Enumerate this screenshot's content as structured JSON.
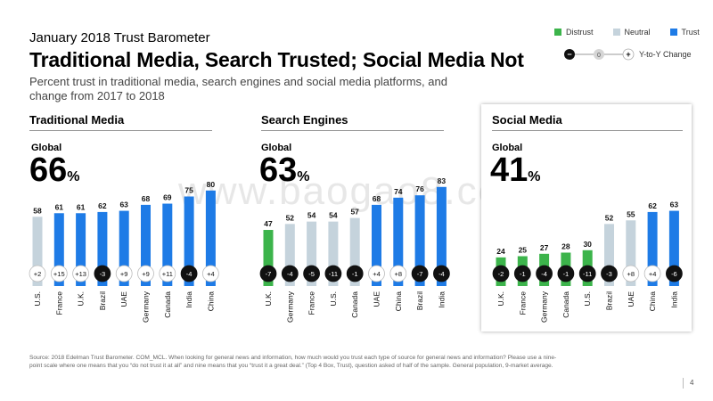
{
  "header": {
    "kicker": "January 2018 Trust Barometer",
    "title": "Traditional Media, Search Trusted; Social Media Not",
    "subtitle": "Percent trust in traditional media, search engines and social media platforms, and change from 2017 to 2018"
  },
  "legend": {
    "distrust": {
      "label": "Distrust",
      "color": "#3cb44b"
    },
    "neutral": {
      "label": "Neutral",
      "color": "#c5d3dc"
    },
    "trust": {
      "label": "Trust",
      "color": "#1e7be6"
    },
    "yoy": {
      "minus": "−",
      "zero": "0",
      "plus": "+",
      "label": "Y-to-Y Change"
    }
  },
  "footer": {
    "source": "Source: 2018 Edelman Trust Barometer. COM_MCL. When looking for general news and information, how much would you trust each type of source for general news and information? Please use a nine-point scale where one means that you “do not trust it at all” and nine means that you “trust it a great deal.” (Top 4 Box, Trust), question asked of half of the sample. General population, 9-market average.",
    "page": "4"
  },
  "watermark": "www.baogao8.com",
  "chart_data": [
    {
      "type": "bar",
      "section": "Traditional Media",
      "global_label": "Global",
      "global_value": "66",
      "unit": "%",
      "categories": [
        "U.S.",
        "France",
        "U.K.",
        "Brazil",
        "UAE",
        "Germany",
        "Canada",
        "India",
        "China"
      ],
      "values": [
        58,
        61,
        61,
        62,
        63,
        68,
        69,
        75,
        80
      ],
      "trust_level": [
        "neutral",
        "trust",
        "trust",
        "trust",
        "trust",
        "trust",
        "trust",
        "trust",
        "trust"
      ],
      "changes": [
        "+2",
        "+15",
        "+13",
        "-3",
        "+9",
        "+9",
        "+11",
        "-4",
        "+4"
      ],
      "change_dir": [
        "up",
        "up",
        "up",
        "down",
        "up",
        "up",
        "up",
        "down",
        "up"
      ]
    },
    {
      "type": "bar",
      "section": "Search Engines",
      "global_label": "Global",
      "global_value": "63",
      "unit": "%",
      "categories": [
        "U.K.",
        "Germany",
        "France",
        "U.S.",
        "Canada",
        "UAE",
        "China",
        "Brazil",
        "India"
      ],
      "values": [
        47,
        52,
        54,
        54,
        57,
        68,
        74,
        76,
        83
      ],
      "trust_level": [
        "distrust",
        "neutral",
        "neutral",
        "neutral",
        "neutral",
        "trust",
        "trust",
        "trust",
        "trust"
      ],
      "changes": [
        "-7",
        "-4",
        "-5",
        "-11",
        "-1",
        "+4",
        "+8",
        "-7",
        "-4"
      ],
      "change_dir": [
        "down",
        "down",
        "down",
        "down",
        "down",
        "up",
        "up",
        "down",
        "down"
      ]
    },
    {
      "type": "bar",
      "section": "Social Media",
      "global_label": "Global",
      "global_value": "41",
      "unit": "%",
      "categories": [
        "U.K.",
        "France",
        "Germany",
        "Canada",
        "U.S.",
        "Brazil",
        "UAE",
        "China",
        "India"
      ],
      "values": [
        24,
        25,
        27,
        28,
        30,
        52,
        55,
        62,
        63
      ],
      "trust_level": [
        "distrust",
        "distrust",
        "distrust",
        "distrust",
        "distrust",
        "neutral",
        "neutral",
        "trust",
        "trust"
      ],
      "changes": [
        "-2",
        "-1",
        "-4",
        "-1",
        "-11",
        "-3",
        "+8",
        "+4",
        "-6"
      ],
      "change_dir": [
        "down",
        "down",
        "down",
        "down",
        "down",
        "down",
        "up",
        "up",
        "down"
      ]
    }
  ]
}
